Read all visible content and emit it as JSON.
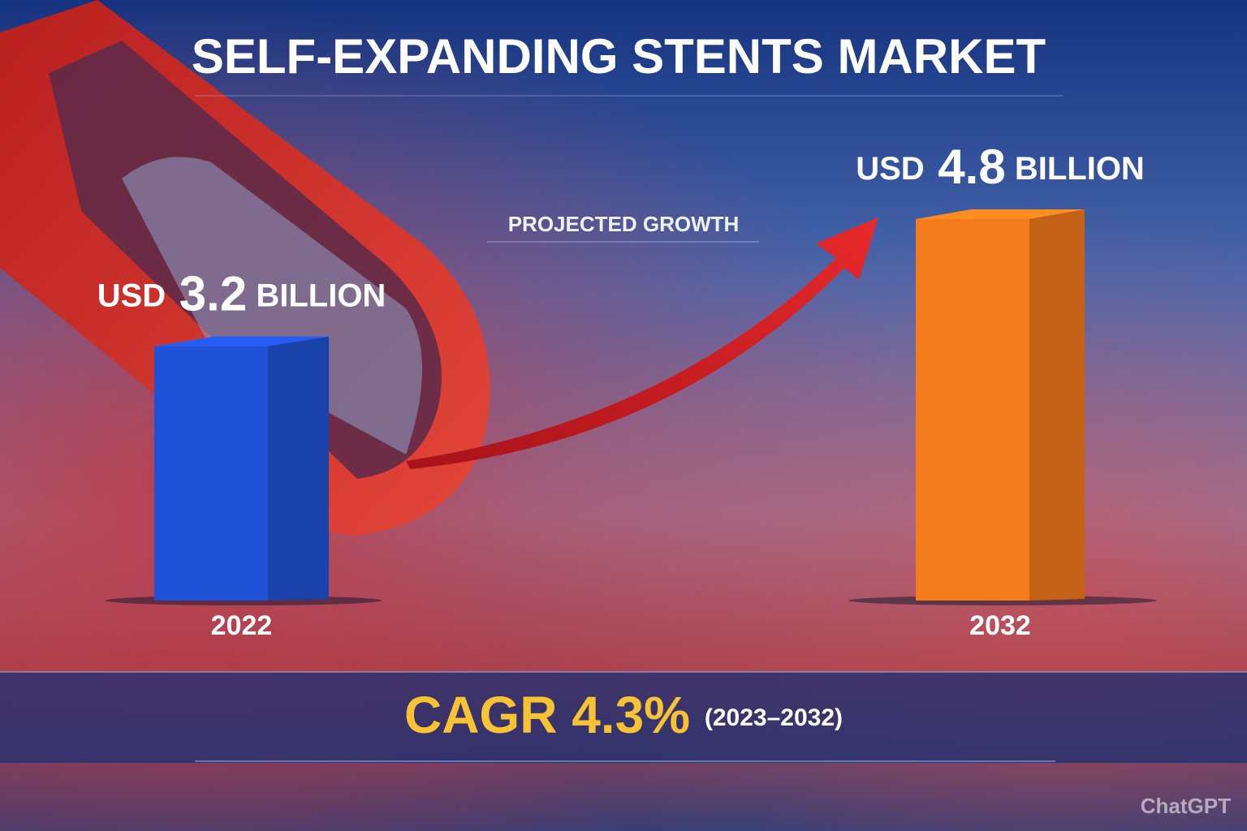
{
  "chart_data": {
    "type": "bar3d",
    "title": "SELF-EXPANDING STENTS MARKET",
    "subtitle": "PROJECTED GROWTH",
    "categories": [
      "2022",
      "2032"
    ],
    "values": [
      3.2,
      4.8
    ],
    "value_labels": [
      "USD 3.2 BILLION",
      "USD 4.8 BILLION"
    ],
    "colors": [
      "#1f52d6",
      "#f47b1c"
    ],
    "annotations": {
      "cagr_label": "CAGR",
      "cagr_value": "4.3%",
      "cagr_period": "(2023–2032)"
    },
    "watermark": "ChatGPT"
  }
}
